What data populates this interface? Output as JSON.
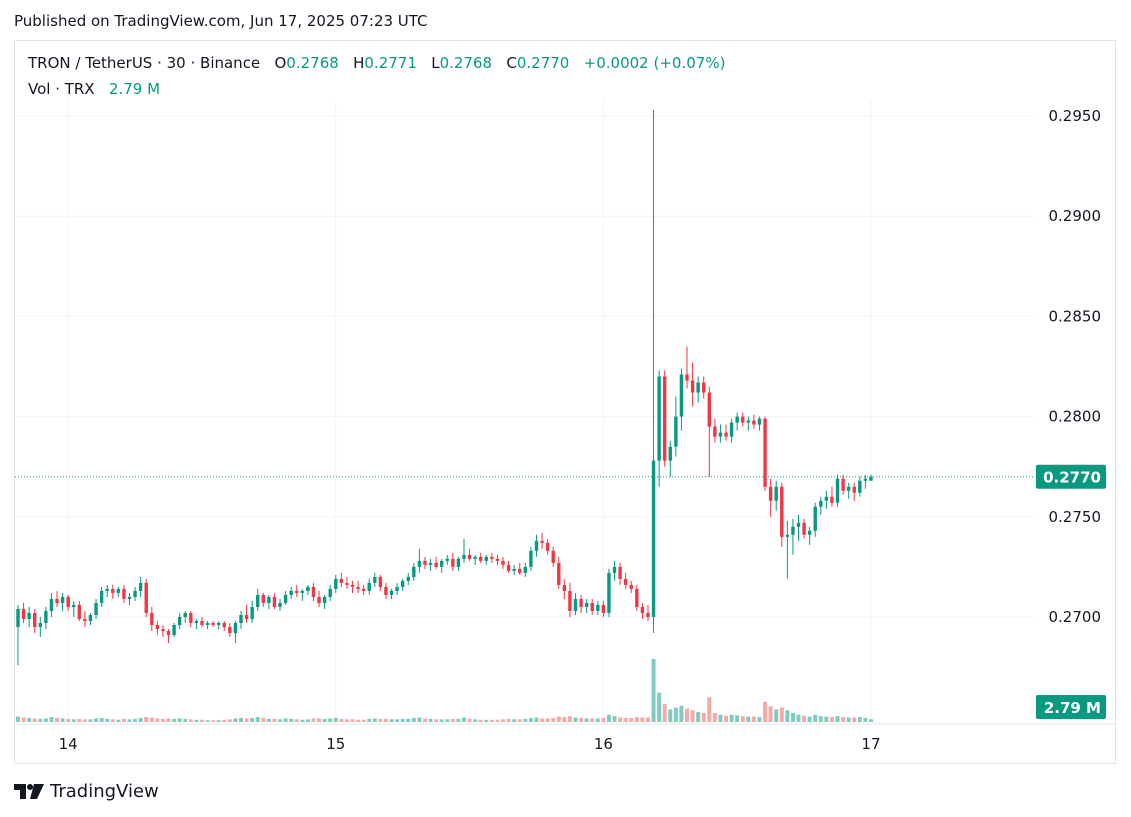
{
  "header": {
    "published": "Published on TradingView.com, Jun 17, 2025 07:23 UTC"
  },
  "legend": {
    "symbol": "TRON / TetherUS · 30 · Binance",
    "o_label": "O",
    "o_value": "0.2768",
    "h_label": "H",
    "h_value": "0.2771",
    "l_label": "L",
    "l_value": "0.2768",
    "c_label": "C",
    "c_value": "0.2770",
    "change": "+0.0002 (+0.07%)",
    "vol_label": "Vol · TRX",
    "vol_value": "2.79 M"
  },
  "price_axis": {
    "ticks": [
      "0.2950",
      "0.2900",
      "0.2850",
      "0.2800",
      "0.2750",
      "0.2700"
    ],
    "last_price_label": "0.2770",
    "volume_label": "2.79 M"
  },
  "time_axis": {
    "ticks": [
      "14",
      "15",
      "16",
      "17"
    ]
  },
  "brand": {
    "name": "TradingView"
  },
  "colors": {
    "up": "#089981",
    "down": "#f23645",
    "up_vol": "#7fcbc0",
    "down_vol": "#f7a9a7",
    "grid": "#f0f3fa"
  },
  "chart_data": {
    "type": "candlestick",
    "interval": "30",
    "yticks": [
      0.295,
      0.29,
      0.285,
      0.28,
      0.275,
      0.27
    ],
    "ylim": [
      0.2675,
      0.2965
    ],
    "xticks": [
      {
        "label": "14",
        "index": 9
      },
      {
        "label": "15",
        "index": 57
      },
      {
        "label": "16",
        "index": 105
      },
      {
        "label": "17",
        "index": 153
      }
    ],
    "last_price": 0.277,
    "candles": [
      [
        0.2695,
        0.2706,
        0.2676,
        0.2704,
        1.2
      ],
      [
        0.2704,
        0.2707,
        0.2697,
        0.2699,
        1.0
      ],
      [
        0.2699,
        0.2705,
        0.2695,
        0.2702,
        0.9
      ],
      [
        0.2702,
        0.2704,
        0.2692,
        0.2695,
        0.8
      ],
      [
        0.2695,
        0.27,
        0.269,
        0.2697,
        0.7
      ],
      [
        0.2697,
        0.2705,
        0.2694,
        0.2703,
        0.8
      ],
      [
        0.2703,
        0.2712,
        0.27,
        0.2709,
        1.1
      ],
      [
        0.2709,
        0.2713,
        0.2705,
        0.2707,
        0.9
      ],
      [
        0.2707,
        0.2712,
        0.2703,
        0.271,
        0.8
      ],
      [
        0.271,
        0.2711,
        0.2703,
        0.2705,
        0.7
      ],
      [
        0.2705,
        0.2708,
        0.27,
        0.2706,
        0.6
      ],
      [
        0.2706,
        0.2708,
        0.2698,
        0.2699,
        0.7
      ],
      [
        0.2699,
        0.2703,
        0.2695,
        0.2698,
        0.6
      ],
      [
        0.2698,
        0.2702,
        0.2696,
        0.2701,
        0.6
      ],
      [
        0.2701,
        0.2709,
        0.2699,
        0.2707,
        0.8
      ],
      [
        0.2707,
        0.2715,
        0.2705,
        0.2713,
        0.9
      ],
      [
        0.2713,
        0.2716,
        0.271,
        0.2714,
        0.7
      ],
      [
        0.2714,
        0.2716,
        0.2709,
        0.2712,
        0.6
      ],
      [
        0.2712,
        0.2715,
        0.271,
        0.2714,
        0.5
      ],
      [
        0.2714,
        0.2716,
        0.2707,
        0.2709,
        0.7
      ],
      [
        0.2709,
        0.2712,
        0.2706,
        0.271,
        0.6
      ],
      [
        0.271,
        0.2715,
        0.2708,
        0.2713,
        0.7
      ],
      [
        0.2713,
        0.272,
        0.271,
        0.2717,
        0.9
      ],
      [
        0.2717,
        0.2719,
        0.27,
        0.2702,
        1.1
      ],
      [
        0.2702,
        0.2705,
        0.2693,
        0.2696,
        1.0
      ],
      [
        0.2696,
        0.2698,
        0.2691,
        0.2694,
        0.8
      ],
      [
        0.2694,
        0.2696,
        0.269,
        0.2693,
        0.7
      ],
      [
        0.2693,
        0.2694,
        0.2687,
        0.2691,
        0.8
      ],
      [
        0.2691,
        0.2697,
        0.269,
        0.2696,
        0.7
      ],
      [
        0.2696,
        0.2702,
        0.2694,
        0.27,
        0.8
      ],
      [
        0.27,
        0.2703,
        0.2697,
        0.2702,
        0.7
      ],
      [
        0.2702,
        0.2703,
        0.2695,
        0.2697,
        0.6
      ],
      [
        0.2697,
        0.2699,
        0.2694,
        0.2698,
        0.5
      ],
      [
        0.2698,
        0.27,
        0.2695,
        0.2696,
        0.5
      ],
      [
        0.2696,
        0.2698,
        0.2694,
        0.2697,
        0.4
      ],
      [
        0.2697,
        0.2698,
        0.2695,
        0.2696,
        0.4
      ],
      [
        0.2696,
        0.2698,
        0.2694,
        0.2697,
        0.4
      ],
      [
        0.2697,
        0.2698,
        0.2693,
        0.2695,
        0.5
      ],
      [
        0.2695,
        0.2697,
        0.269,
        0.2692,
        0.6
      ],
      [
        0.2692,
        0.2698,
        0.2687,
        0.2697,
        0.8
      ],
      [
        0.2697,
        0.2703,
        0.2694,
        0.2701,
        0.9
      ],
      [
        0.2701,
        0.2706,
        0.2697,
        0.2699,
        0.8
      ],
      [
        0.2699,
        0.2708,
        0.2697,
        0.2705,
        0.9
      ],
      [
        0.2705,
        0.2714,
        0.2703,
        0.2711,
        1.1
      ],
      [
        0.2711,
        0.2712,
        0.2705,
        0.2707,
        0.9
      ],
      [
        0.2707,
        0.2711,
        0.2704,
        0.271,
        0.7
      ],
      [
        0.271,
        0.2712,
        0.2704,
        0.2705,
        0.7
      ],
      [
        0.2705,
        0.2709,
        0.2703,
        0.2707,
        0.6
      ],
      [
        0.2707,
        0.2713,
        0.2706,
        0.2711,
        0.8
      ],
      [
        0.2711,
        0.2715,
        0.2709,
        0.2713,
        0.7
      ],
      [
        0.2713,
        0.2716,
        0.271,
        0.2712,
        0.6
      ],
      [
        0.2712,
        0.2714,
        0.2708,
        0.2713,
        0.5
      ],
      [
        0.2713,
        0.2716,
        0.2711,
        0.2715,
        0.6
      ],
      [
        0.2715,
        0.2717,
        0.2708,
        0.271,
        0.8
      ],
      [
        0.271,
        0.2713,
        0.2705,
        0.2707,
        0.8
      ],
      [
        0.2707,
        0.2711,
        0.2704,
        0.271,
        0.7
      ],
      [
        0.271,
        0.2716,
        0.2708,
        0.2714,
        0.8
      ],
      [
        0.2714,
        0.2721,
        0.2712,
        0.2719,
        0.9
      ],
      [
        0.2719,
        0.2722,
        0.2715,
        0.2717,
        0.7
      ],
      [
        0.2717,
        0.272,
        0.2714,
        0.2716,
        0.6
      ],
      [
        0.2716,
        0.2718,
        0.2712,
        0.2715,
        0.6
      ],
      [
        0.2715,
        0.2718,
        0.2712,
        0.2714,
        0.5
      ],
      [
        0.2714,
        0.2716,
        0.2711,
        0.2713,
        0.5
      ],
      [
        0.2713,
        0.2719,
        0.2711,
        0.2717,
        0.7
      ],
      [
        0.2717,
        0.2722,
        0.2715,
        0.272,
        0.8
      ],
      [
        0.272,
        0.2721,
        0.2713,
        0.2715,
        0.7
      ],
      [
        0.2715,
        0.2717,
        0.2709,
        0.2711,
        0.7
      ],
      [
        0.2711,
        0.2714,
        0.2709,
        0.2713,
        0.6
      ],
      [
        0.2713,
        0.2717,
        0.2711,
        0.2715,
        0.6
      ],
      [
        0.2715,
        0.2719,
        0.2713,
        0.2718,
        0.7
      ],
      [
        0.2718,
        0.2722,
        0.2716,
        0.272,
        0.7
      ],
      [
        0.272,
        0.2727,
        0.2718,
        0.2725,
        0.9
      ],
      [
        0.2725,
        0.2734,
        0.2722,
        0.2728,
        1.0
      ],
      [
        0.2728,
        0.273,
        0.2724,
        0.2726,
        0.8
      ],
      [
        0.2726,
        0.2729,
        0.2723,
        0.2727,
        0.7
      ],
      [
        0.2727,
        0.273,
        0.2724,
        0.2725,
        0.6
      ],
      [
        0.2725,
        0.2729,
        0.2722,
        0.2728,
        0.6
      ],
      [
        0.2728,
        0.2731,
        0.2726,
        0.2729,
        0.6
      ],
      [
        0.2729,
        0.2732,
        0.2723,
        0.2725,
        0.7
      ],
      [
        0.2725,
        0.273,
        0.2723,
        0.2729,
        0.7
      ],
      [
        0.2729,
        0.2739,
        0.2727,
        0.2731,
        1.0
      ],
      [
        0.2731,
        0.2734,
        0.2728,
        0.2729,
        0.7
      ],
      [
        0.2729,
        0.2731,
        0.2726,
        0.273,
        0.6
      ],
      [
        0.273,
        0.2732,
        0.2727,
        0.2728,
        0.5
      ],
      [
        0.2728,
        0.2731,
        0.2726,
        0.273,
        0.5
      ],
      [
        0.273,
        0.2732,
        0.2727,
        0.2729,
        0.5
      ],
      [
        0.2729,
        0.2731,
        0.2726,
        0.2728,
        0.5
      ],
      [
        0.2728,
        0.273,
        0.2724,
        0.2726,
        0.6
      ],
      [
        0.2726,
        0.2728,
        0.2722,
        0.2723,
        0.7
      ],
      [
        0.2723,
        0.2726,
        0.2721,
        0.2724,
        0.6
      ],
      [
        0.2724,
        0.2727,
        0.2721,
        0.2722,
        0.6
      ],
      [
        0.2722,
        0.2727,
        0.272,
        0.2725,
        0.7
      ],
      [
        0.2725,
        0.2735,
        0.2723,
        0.2733,
        0.9
      ],
      [
        0.2733,
        0.2741,
        0.273,
        0.2738,
        1.0
      ],
      [
        0.2738,
        0.2742,
        0.2734,
        0.2737,
        0.8
      ],
      [
        0.2737,
        0.2739,
        0.2731,
        0.2733,
        0.8
      ],
      [
        0.2733,
        0.2735,
        0.2725,
        0.2727,
        0.9
      ],
      [
        0.2727,
        0.273,
        0.2714,
        0.2716,
        1.2
      ],
      [
        0.2716,
        0.2719,
        0.2709,
        0.2713,
        1.1
      ],
      [
        0.2713,
        0.2717,
        0.27,
        0.2703,
        1.3
      ],
      [
        0.2703,
        0.2712,
        0.2701,
        0.2709,
        1.0
      ],
      [
        0.2709,
        0.2711,
        0.2702,
        0.2705,
        0.9
      ],
      [
        0.2705,
        0.2709,
        0.2702,
        0.2707,
        0.8
      ],
      [
        0.2707,
        0.2709,
        0.2701,
        0.2703,
        0.8
      ],
      [
        0.2703,
        0.2708,
        0.2701,
        0.2706,
        0.8
      ],
      [
        0.2706,
        0.2708,
        0.27,
        0.2702,
        0.9
      ],
      [
        0.2702,
        0.2724,
        0.27,
        0.2722,
        1.6
      ],
      [
        0.2722,
        0.2728,
        0.2718,
        0.2725,
        1.3
      ],
      [
        0.2725,
        0.2727,
        0.2716,
        0.2719,
        1.0
      ],
      [
        0.2719,
        0.2722,
        0.2714,
        0.2716,
        0.9
      ],
      [
        0.2716,
        0.2718,
        0.2712,
        0.2714,
        0.9
      ],
      [
        0.2714,
        0.2716,
        0.2703,
        0.2705,
        1.1
      ],
      [
        0.2705,
        0.2707,
        0.2699,
        0.2702,
        1.0
      ],
      [
        0.2702,
        0.2706,
        0.2698,
        0.27,
        1.0
      ],
      [
        0.27,
        0.2953,
        0.2692,
        0.2778,
        14.0
      ],
      [
        0.2778,
        0.2823,
        0.2765,
        0.282,
        6.5
      ],
      [
        0.282,
        0.2823,
        0.2775,
        0.2778,
        4.0
      ],
      [
        0.2778,
        0.2788,
        0.277,
        0.2785,
        2.8
      ],
      [
        0.2785,
        0.281,
        0.278,
        0.28,
        3.2
      ],
      [
        0.28,
        0.2824,
        0.2793,
        0.2821,
        3.6
      ],
      [
        0.2821,
        0.2835,
        0.2814,
        0.2818,
        3.0
      ],
      [
        0.2818,
        0.2827,
        0.2805,
        0.2812,
        2.6
      ],
      [
        0.2812,
        0.282,
        0.2807,
        0.2817,
        2.2
      ],
      [
        0.2817,
        0.282,
        0.2809,
        0.2812,
        2.0
      ],
      [
        0.2812,
        0.2815,
        0.277,
        0.2795,
        5.5
      ],
      [
        0.2795,
        0.2799,
        0.2787,
        0.279,
        2.0
      ],
      [
        0.279,
        0.2796,
        0.2787,
        0.2792,
        1.6
      ],
      [
        0.2792,
        0.2796,
        0.2788,
        0.279,
        1.4
      ],
      [
        0.279,
        0.2799,
        0.2787,
        0.2797,
        1.6
      ],
      [
        0.2797,
        0.2802,
        0.2793,
        0.28,
        1.5
      ],
      [
        0.28,
        0.2802,
        0.2795,
        0.2797,
        1.3
      ],
      [
        0.2797,
        0.28,
        0.2793,
        0.2798,
        1.2
      ],
      [
        0.2798,
        0.2801,
        0.2794,
        0.2796,
        1.2
      ],
      [
        0.2796,
        0.28,
        0.2793,
        0.2799,
        1.1
      ],
      [
        0.2799,
        0.28,
        0.2763,
        0.2765,
        4.5
      ],
      [
        0.2765,
        0.2769,
        0.275,
        0.2758,
        3.5
      ],
      [
        0.2758,
        0.2768,
        0.2753,
        0.2765,
        2.8
      ],
      [
        0.2765,
        0.2767,
        0.2735,
        0.274,
        3.2
      ],
      [
        0.274,
        0.2748,
        0.2719,
        0.2741,
        2.6
      ],
      [
        0.2741,
        0.2749,
        0.2731,
        0.2745,
        2.0
      ],
      [
        0.2745,
        0.2751,
        0.2738,
        0.2747,
        1.6
      ],
      [
        0.2747,
        0.2749,
        0.2739,
        0.2741,
        1.4
      ],
      [
        0.2741,
        0.2745,
        0.2736,
        0.2743,
        1.2
      ],
      [
        0.2743,
        0.2757,
        0.274,
        0.2755,
        1.6
      ],
      [
        0.2755,
        0.276,
        0.2751,
        0.2758,
        1.3
      ],
      [
        0.2758,
        0.2763,
        0.2754,
        0.276,
        1.2
      ],
      [
        0.276,
        0.2765,
        0.2755,
        0.2757,
        1.1
      ],
      [
        0.2757,
        0.2771,
        0.2755,
        0.2769,
        1.3
      ],
      [
        0.2769,
        0.2771,
        0.2761,
        0.2763,
        1.1
      ],
      [
        0.2763,
        0.2767,
        0.2759,
        0.2765,
        1.0
      ],
      [
        0.2765,
        0.2767,
        0.2758,
        0.2762,
        1.0
      ],
      [
        0.2762,
        0.277,
        0.276,
        0.2768,
        1.1
      ],
      [
        0.2768,
        0.2771,
        0.2764,
        0.2769,
        0.9
      ],
      [
        0.2768,
        0.2771,
        0.2768,
        0.277,
        0.6
      ]
    ]
  }
}
